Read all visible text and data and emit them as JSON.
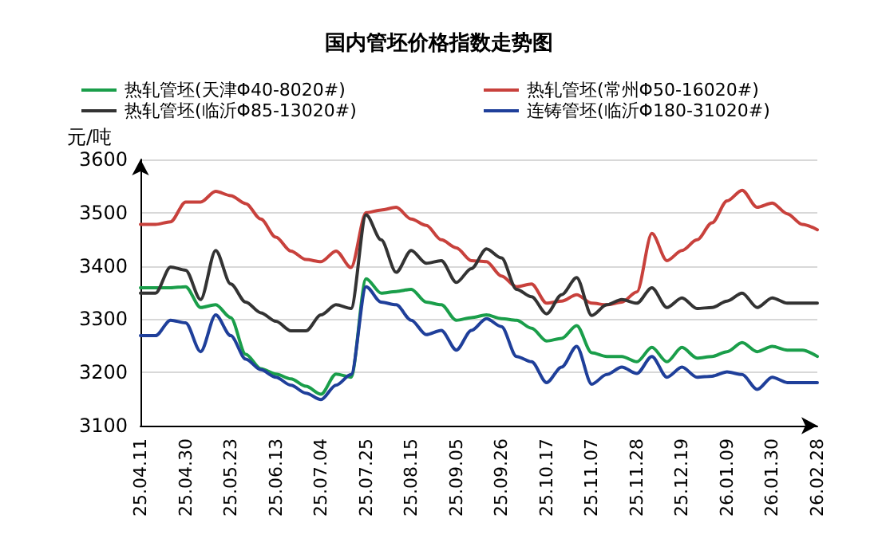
{
  "chart_data": {
    "type": "line",
    "title": "国内管坯价格指数走势图",
    "ylabel": "元/吨",
    "categories": [
      "25.04.11",
      null,
      null,
      "25.04.30",
      null,
      null,
      "25.05.23",
      null,
      null,
      "25.06.13",
      null,
      null,
      "25.07.04",
      null,
      null,
      "25.07.25",
      null,
      null,
      "25.08.15",
      null,
      null,
      "25.09.05",
      null,
      null,
      "25.09.26",
      null,
      null,
      "25.10.17",
      null,
      null,
      "25.11.07",
      null,
      null,
      "25.11.28",
      null,
      null,
      "25.12.19",
      null,
      null,
      "26.01.09",
      null,
      null,
      "26.01.30",
      null,
      null,
      "26.02.28"
    ],
    "series": [
      {
        "name": "热轧管坯(天津Φ40-8020#)",
        "color": "#1a9e4a",
        "values": [
          3359,
          3359,
          3359,
          3361,
          3322,
          3327,
          3303,
          3234,
          3207,
          3197,
          3188,
          3174,
          3159,
          3197,
          3191,
          3376,
          3349,
          3352,
          3356,
          3332,
          3327,
          3298,
          3303,
          3308,
          3301,
          3298,
          3283,
          3259,
          3264,
          3288,
          3237,
          3230,
          3230,
          3220,
          3247,
          3220,
          3247,
          3227,
          3230,
          3239,
          3256,
          3239,
          3249,
          3242,
          3242,
          3230
        ]
      },
      {
        "name": "热轧管坯(常州Φ50-16020#)",
        "color": "#c8413c",
        "values": [
          3478,
          3478,
          3483,
          3520,
          3520,
          3540,
          3532,
          3517,
          3488,
          3454,
          3428,
          3412,
          3408,
          3428,
          3397,
          3500,
          3505,
          3510,
          3488,
          3476,
          3449,
          3434,
          3410,
          3408,
          3381,
          3361,
          3366,
          3330,
          3334,
          3346,
          3330,
          3327,
          3332,
          3351,
          3461,
          3410,
          3429,
          3449,
          3481,
          3522,
          3542,
          3510,
          3518,
          3498,
          3478,
          3468
        ]
      },
      {
        "name": "热轧管坯(临沂Φ85-13020#)",
        "color": "#333333",
        "values": [
          3349,
          3349,
          3398,
          3392,
          3337,
          3429,
          3366,
          3332,
          3312,
          3296,
          3278,
          3278,
          3308,
          3327,
          3320,
          3496,
          3449,
          3388,
          3429,
          3405,
          3410,
          3369,
          3395,
          3432,
          3415,
          3356,
          3342,
          3310,
          3346,
          3378,
          3307,
          3327,
          3337,
          3330,
          3359,
          3322,
          3340,
          3320,
          3322,
          3334,
          3349,
          3322,
          3340,
          3330,
          3330,
          3330
        ]
      },
      {
        "name": "连铸管坯(临沂Φ180-31020#)",
        "color": "#1f3f9a",
        "values": [
          3269,
          3269,
          3298,
          3293,
          3239,
          3308,
          3269,
          3225,
          3205,
          3191,
          3176,
          3161,
          3149,
          3176,
          3196,
          3361,
          3332,
          3327,
          3298,
          3271,
          3279,
          3242,
          3279,
          3301,
          3286,
          3230,
          3220,
          3181,
          3210,
          3249,
          3178,
          3196,
          3210,
          3198,
          3230,
          3191,
          3210,
          3191,
          3193,
          3201,
          3196,
          3168,
          3191,
          3181,
          3181,
          3181
        ]
      }
    ],
    "ylim": [
      3100,
      3600
    ],
    "yticks": [
      3100,
      3200,
      3300,
      3400,
      3500,
      3600
    ],
    "grid": "y",
    "legend": "top",
    "marker": "none",
    "line_style": "solid"
  }
}
